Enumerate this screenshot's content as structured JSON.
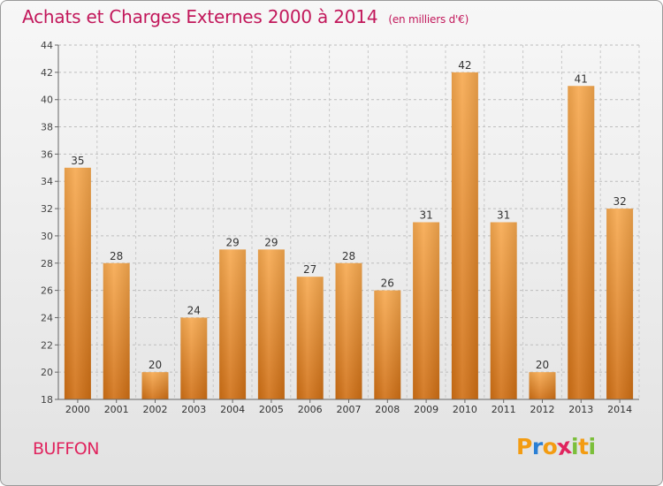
{
  "header": {
    "title": "Achats et Charges Externes 2000 à 2014",
    "unit": "(en milliers d'€)"
  },
  "footer": {
    "label": "BUFFON",
    "logo": [
      "P",
      "r",
      "o",
      "x",
      "i",
      "t",
      "i"
    ],
    "logo_colors": [
      "#f39c12",
      "#2a7fd4",
      "#f39c12",
      "#e0245e",
      "#7bbf3a",
      "#f39c12",
      "#7bbf3a"
    ]
  },
  "colors": {
    "bar_top": "#f7a94f",
    "bar_bottom": "#d06f14",
    "title": "#c2185b"
  },
  "chart_data": {
    "type": "bar",
    "title": "Achats et Charges Externes 2000 à 2014",
    "subtitle": "(en milliers d'€)",
    "categories": [
      "2000",
      "2001",
      "2002",
      "2003",
      "2004",
      "2005",
      "2006",
      "2007",
      "2008",
      "2009",
      "2010",
      "2011",
      "2012",
      "2013",
      "2014"
    ],
    "values": [
      35,
      28,
      20,
      24,
      29,
      29,
      27,
      28,
      26,
      31,
      42,
      31,
      20,
      41,
      32
    ],
    "ylim": [
      18,
      44
    ],
    "yticks": [
      18,
      20,
      22,
      24,
      26,
      28,
      30,
      32,
      34,
      36,
      38,
      40,
      42,
      44
    ],
    "grid": true,
    "data_labels": true
  }
}
